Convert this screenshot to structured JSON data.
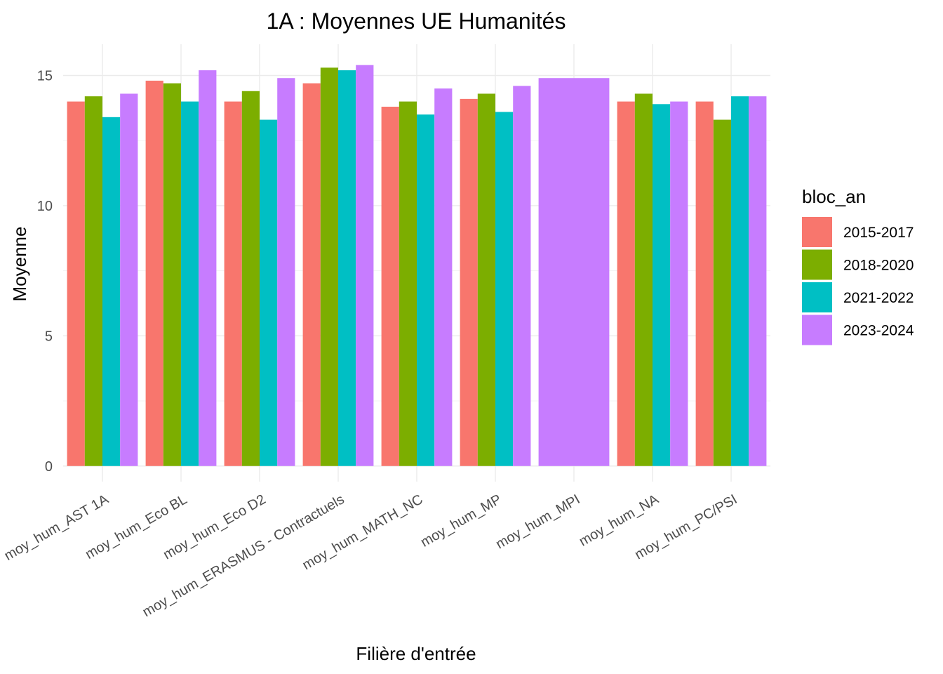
{
  "chart_data": {
    "type": "bar",
    "title": "1A : Moyennes UE Humanités",
    "xlabel": "Filière d'entrée",
    "ylabel": "Moyenne",
    "ylim": [
      -0.6,
      16.2
    ],
    "yticks": [
      0,
      5,
      10,
      15
    ],
    "grid": true,
    "legend": {
      "title": "bloc_an",
      "position": "right"
    },
    "categories": [
      "moy_hum_AST 1A",
      "moy_hum_Eco BL",
      "moy_hum_Eco D2",
      "moy_hum_ERASMUS - Contractuels",
      "moy_hum_MATH_NC",
      "moy_hum_MP",
      "moy_hum_MPI",
      "moy_hum_NA",
      "moy_hum_PC/PSI"
    ],
    "series": [
      {
        "name": "2015-2017",
        "color": "#F8766D",
        "values": [
          14.0,
          14.8,
          14.0,
          14.7,
          13.8,
          14.1,
          null,
          14.0,
          14.0
        ]
      },
      {
        "name": "2018-2020",
        "color": "#7CAE00",
        "values": [
          14.2,
          14.7,
          14.4,
          15.3,
          14.0,
          14.3,
          null,
          14.3,
          13.3
        ]
      },
      {
        "name": "2021-2022",
        "color": "#00BFC4",
        "values": [
          13.4,
          14.0,
          13.3,
          15.2,
          13.5,
          13.6,
          null,
          13.9,
          14.2
        ]
      },
      {
        "name": "2023-2024",
        "color": "#C77CFF",
        "values": [
          14.3,
          15.2,
          14.9,
          15.4,
          14.5,
          14.6,
          14.9,
          14.0,
          14.2
        ]
      }
    ]
  }
}
